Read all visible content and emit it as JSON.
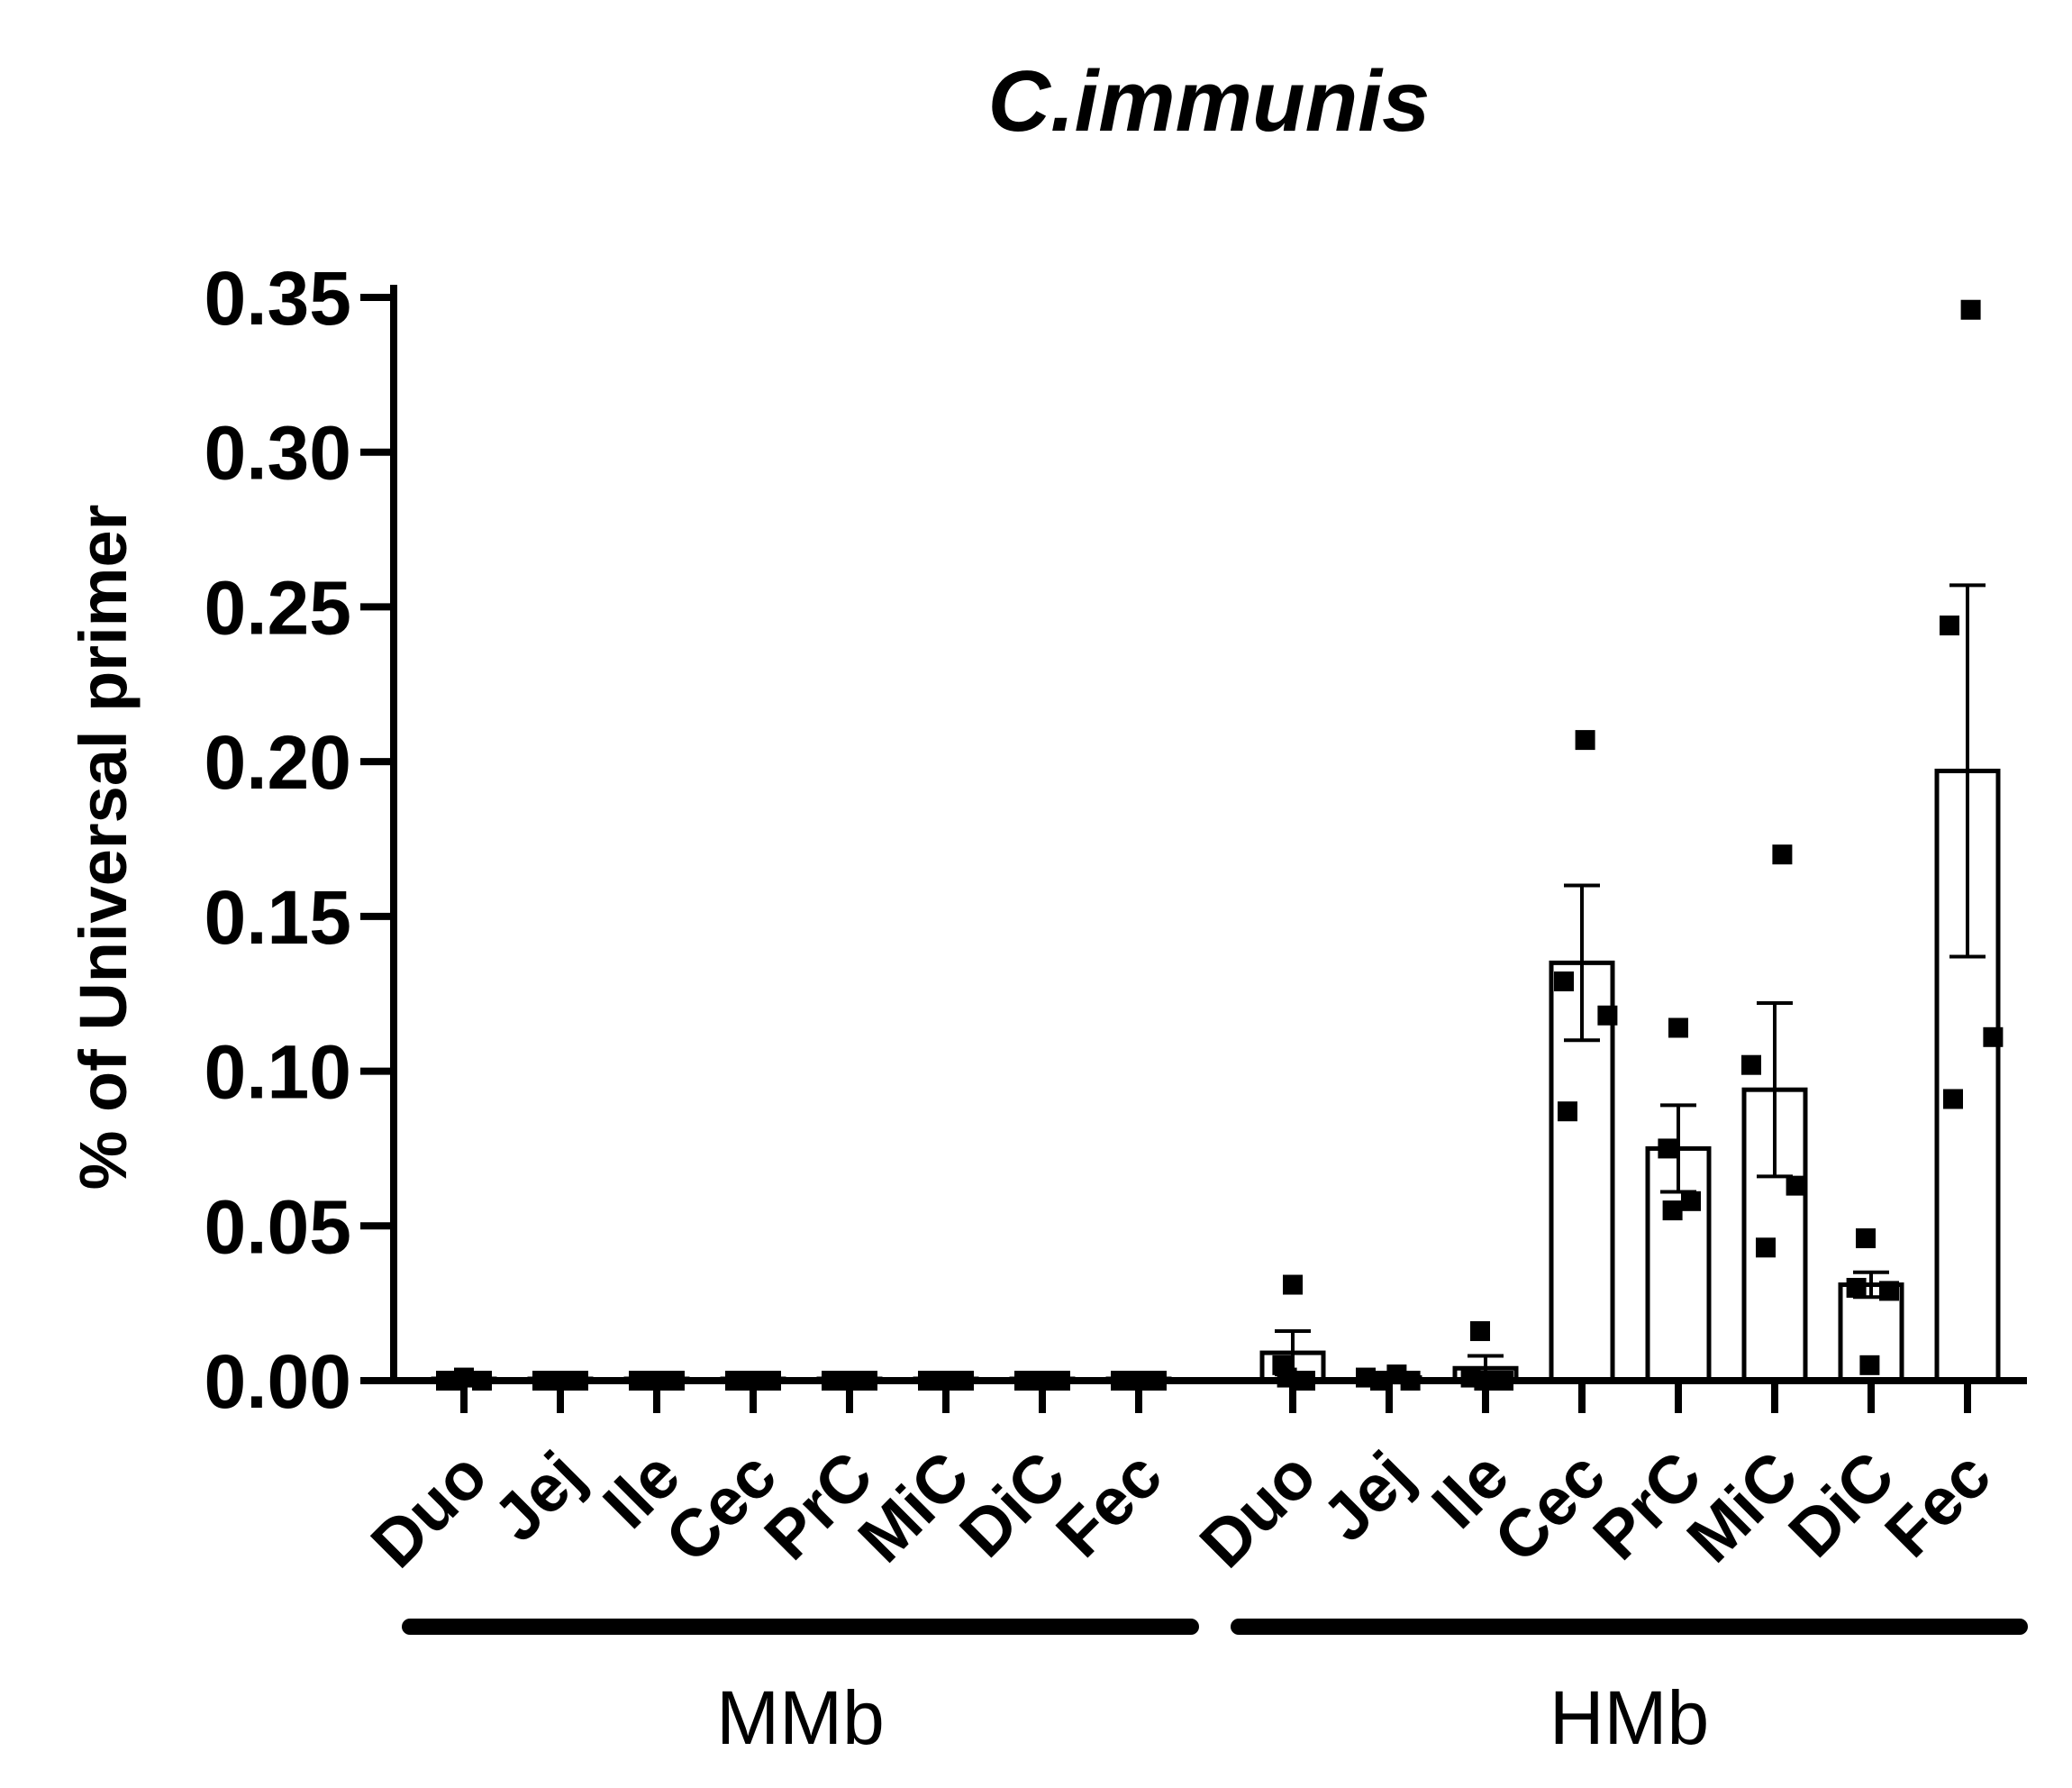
{
  "chart_data": {
    "type": "bar",
    "title": "C.immunis",
    "ylabel": "% of Universal primer",
    "xlabel": "",
    "ylim": [
      0,
      0.35
    ],
    "yticks": [
      "0.00",
      "0.05",
      "0.10",
      "0.15",
      "0.20",
      "0.25",
      "0.30",
      "0.35"
    ],
    "grid": false,
    "error_bars": "mean ± SEM",
    "groups": [
      {
        "label": "MMb",
        "categories": [
          "Duo",
          "Jej",
          "Ile",
          "Cec",
          "PrC",
          "MiC",
          "DiC",
          "Fec"
        ],
        "values": [
          0.0005,
          0.0003,
          0.0003,
          0.0003,
          0.0003,
          0.0003,
          0.0003,
          0.0003
        ],
        "errors": [
          0.0002,
          0.0001,
          0.0001,
          0.0001,
          0.0001,
          0.0001,
          0.0001,
          0.0001
        ],
        "points": [
          [
            0.001,
            0.0,
            0.0,
            0.0
          ],
          [
            0.0,
            0.0,
            0.0,
            0.0
          ],
          [
            0.0,
            0.0,
            0.0,
            0.0
          ],
          [
            0.0,
            0.0,
            0.0,
            0.0
          ],
          [
            0.0,
            0.0,
            0.0,
            0.0
          ],
          [
            0.0,
            0.0,
            0.0,
            0.0
          ],
          [
            0.0,
            0.0,
            0.0,
            0.0
          ],
          [
            0.0,
            0.0,
            0.0,
            0.0
          ]
        ]
      },
      {
        "label": "HMb",
        "categories": [
          "Duo",
          "Jej",
          "Ile",
          "Cec",
          "PrC",
          "MiC",
          "DiC",
          "Fec"
        ],
        "values": [
          0.009,
          0.001,
          0.004,
          0.135,
          0.075,
          0.094,
          0.031,
          0.197
        ],
        "errors": [
          0.007,
          0.0008,
          0.004,
          0.025,
          0.014,
          0.028,
          0.004,
          0.06
        ],
        "points": [
          [
            0.031,
            0.005,
            0.0,
            0.001
          ],
          [
            0.002,
            0.001,
            0.0,
            0.0
          ],
          [
            0.016,
            0.001,
            0.0,
            0.0
          ],
          [
            0.207,
            0.129,
            0.118,
            0.087
          ],
          [
            0.114,
            0.075,
            0.058,
            0.055
          ],
          [
            0.17,
            0.102,
            0.063,
            0.043
          ],
          [
            0.046,
            0.03,
            0.029,
            0.005
          ],
          [
            0.346,
            0.244,
            0.111,
            0.091
          ]
        ]
      }
    ]
  }
}
